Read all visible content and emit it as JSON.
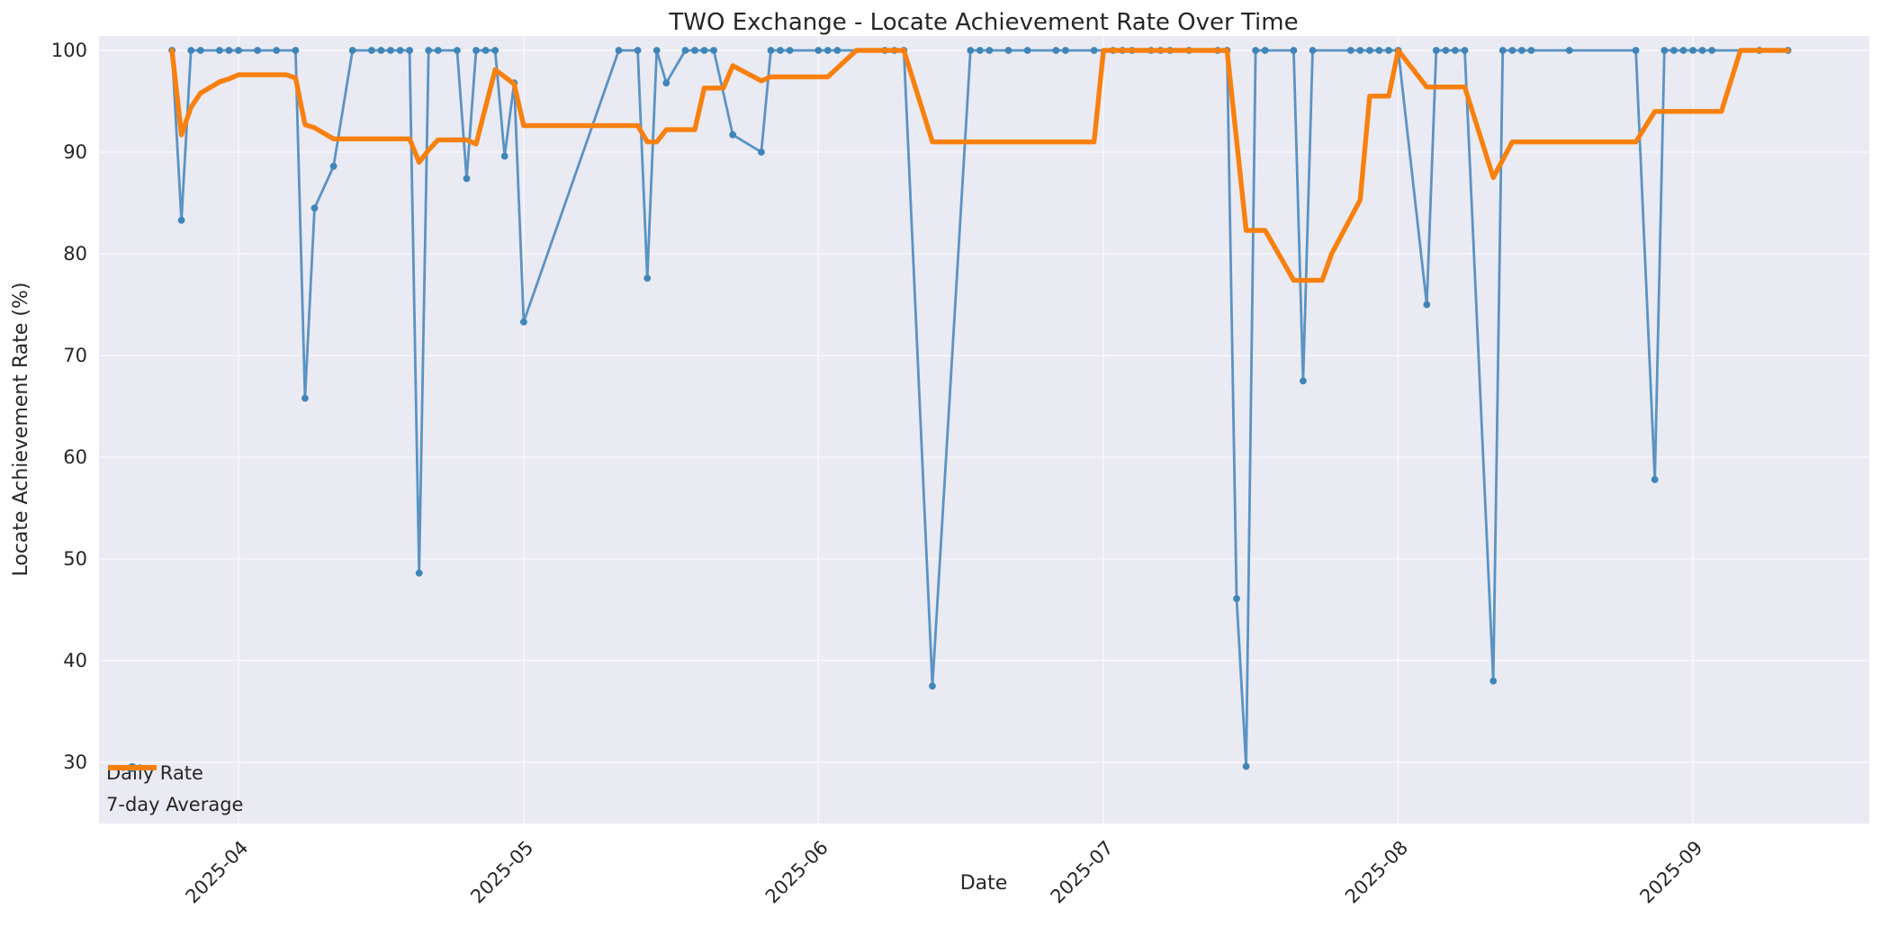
{
  "figure": {
    "title": "TWO Exchange - Locate Achievement Rate Over Time",
    "xlabel": "Date",
    "ylabel": "Locate Achievement Rate (%)"
  },
  "legend": {
    "items": [
      {
        "label": "Daily Rate"
      },
      {
        "label": "7-day Average"
      }
    ]
  },
  "colors": {
    "daily_line": "#5a93c4",
    "daily_marker": "#3f85b8",
    "avg_line": "#f8800f",
    "plot_background": "#eaeaf2",
    "grid_line": "#f7f7fb",
    "text": "#262626"
  },
  "chart_data": {
    "type": "line",
    "title": "TWO Exchange - Locate Achievement Rate Over Time",
    "xlabel": "Date",
    "ylabel": "Locate Achievement Rate (%)",
    "grid": true,
    "legend_position": "lower left",
    "x_axis": {
      "ticks": [
        {
          "label": "2025-04",
          "date": "2025-04-01"
        },
        {
          "label": "2025-05",
          "date": "2025-05-01"
        },
        {
          "label": "2025-06",
          "date": "2025-06-01"
        },
        {
          "label": "2025-07",
          "date": "2025-07-01"
        },
        {
          "label": "2025-08",
          "date": "2025-08-01"
        },
        {
          "label": "2025-09",
          "date": "2025-09-01"
        }
      ]
    },
    "y_axis": {
      "ticks": [
        30,
        40,
        50,
        60,
        70,
        80,
        90,
        100
      ],
      "range": [
        24,
        101.4
      ]
    },
    "series": [
      {
        "name": "Daily Rate",
        "marker": true,
        "points": [
          [
            "2025-03-25",
            100
          ],
          [
            "2025-03-26",
            83.3
          ],
          [
            "2025-03-27",
            100
          ],
          [
            "2025-03-28",
            100
          ],
          [
            "2025-03-30",
            100
          ],
          [
            "2025-03-31",
            100
          ],
          [
            "2025-04-01",
            100
          ],
          [
            "2025-04-03",
            100
          ],
          [
            "2025-04-05",
            100
          ],
          [
            "2025-04-07",
            100
          ],
          [
            "2025-04-08",
            65.8
          ],
          [
            "2025-04-09",
            84.5
          ],
          [
            "2025-04-11",
            88.6
          ],
          [
            "2025-04-13",
            100
          ],
          [
            "2025-04-15",
            100
          ],
          [
            "2025-04-16",
            100
          ],
          [
            "2025-04-17",
            100
          ],
          [
            "2025-04-18",
            100
          ],
          [
            "2025-04-19",
            100
          ],
          [
            "2025-04-20",
            48.6
          ],
          [
            "2025-04-21",
            100
          ],
          [
            "2025-04-22",
            100
          ],
          [
            "2025-04-24",
            100
          ],
          [
            "2025-04-25",
            87.4
          ],
          [
            "2025-04-26",
            100
          ],
          [
            "2025-04-27",
            100
          ],
          [
            "2025-04-28",
            100
          ],
          [
            "2025-04-29",
            89.6
          ],
          [
            "2025-04-30",
            96.8
          ],
          [
            "2025-05-01",
            73.3
          ],
          [
            "2025-05-11",
            100
          ],
          [
            "2025-05-13",
            100
          ],
          [
            "2025-05-14",
            77.6
          ],
          [
            "2025-05-15",
            100
          ],
          [
            "2025-05-16",
            96.8
          ],
          [
            "2025-05-18",
            100
          ],
          [
            "2025-05-19",
            100
          ],
          [
            "2025-05-20",
            100
          ],
          [
            "2025-05-21",
            100
          ],
          [
            "2025-05-23",
            91.7
          ],
          [
            "2025-05-26",
            90
          ],
          [
            "2025-05-27",
            100
          ],
          [
            "2025-05-28",
            100
          ],
          [
            "2025-05-29",
            100
          ],
          [
            "2025-06-01",
            100
          ],
          [
            "2025-06-02",
            100
          ],
          [
            "2025-06-03",
            100
          ],
          [
            "2025-06-08",
            100
          ],
          [
            "2025-06-09",
            100
          ],
          [
            "2025-06-10",
            100
          ],
          [
            "2025-06-13",
            37.5
          ],
          [
            "2025-06-17",
            100
          ],
          [
            "2025-06-18",
            100
          ],
          [
            "2025-06-19",
            100
          ],
          [
            "2025-06-21",
            100
          ],
          [
            "2025-06-23",
            100
          ],
          [
            "2025-06-26",
            100
          ],
          [
            "2025-06-27",
            100
          ],
          [
            "2025-06-30",
            100
          ],
          [
            "2025-07-02",
            100
          ],
          [
            "2025-07-03",
            100
          ],
          [
            "2025-07-04",
            100
          ],
          [
            "2025-07-06",
            100
          ],
          [
            "2025-07-07",
            100
          ],
          [
            "2025-07-08",
            100
          ],
          [
            "2025-07-10",
            100
          ],
          [
            "2025-07-13",
            100
          ],
          [
            "2025-07-14",
            100
          ],
          [
            "2025-07-15",
            46.1
          ],
          [
            "2025-07-16",
            29.6
          ],
          [
            "2025-07-17",
            100
          ],
          [
            "2025-07-18",
            100
          ],
          [
            "2025-07-21",
            100
          ],
          [
            "2025-07-22",
            67.5
          ],
          [
            "2025-07-23",
            100
          ],
          [
            "2025-07-27",
            100
          ],
          [
            "2025-07-28",
            100
          ],
          [
            "2025-07-29",
            100
          ],
          [
            "2025-07-30",
            100
          ],
          [
            "2025-07-31",
            100
          ],
          [
            "2025-08-01",
            100
          ],
          [
            "2025-08-04",
            75
          ],
          [
            "2025-08-05",
            100
          ],
          [
            "2025-08-06",
            100
          ],
          [
            "2025-08-07",
            100
          ],
          [
            "2025-08-08",
            100
          ],
          [
            "2025-08-11",
            38
          ],
          [
            "2025-08-12",
            100
          ],
          [
            "2025-08-13",
            100
          ],
          [
            "2025-08-14",
            100
          ],
          [
            "2025-08-15",
            100
          ],
          [
            "2025-08-19",
            100
          ],
          [
            "2025-08-26",
            100
          ],
          [
            "2025-08-28",
            57.8
          ],
          [
            "2025-08-29",
            100
          ],
          [
            "2025-08-30",
            100
          ],
          [
            "2025-08-31",
            100
          ],
          [
            "2025-09-01",
            100
          ],
          [
            "2025-09-02",
            100
          ],
          [
            "2025-09-03",
            100
          ],
          [
            "2025-09-08",
            100
          ],
          [
            "2025-09-11",
            100
          ]
        ]
      },
      {
        "name": "7-day Average",
        "marker": false,
        "points": [
          [
            "2025-03-25",
            100
          ],
          [
            "2025-03-26",
            91.7
          ],
          [
            "2025-03-27",
            94.4
          ],
          [
            "2025-03-28",
            95.8
          ],
          [
            "2025-03-30",
            96.9
          ],
          [
            "2025-03-31",
            97.2
          ],
          [
            "2025-04-01",
            97.6
          ],
          [
            "2025-04-06",
            97.6
          ],
          [
            "2025-04-07",
            97.3
          ],
          [
            "2025-04-08",
            92.7
          ],
          [
            "2025-04-09",
            92.4
          ],
          [
            "2025-04-11",
            91.3
          ],
          [
            "2025-04-19",
            91.3
          ],
          [
            "2025-04-20",
            89.0
          ],
          [
            "2025-04-21",
            90.2
          ],
          [
            "2025-04-22",
            91.2
          ],
          [
            "2025-04-25",
            91.2
          ],
          [
            "2025-04-26",
            90.8
          ],
          [
            "2025-04-28",
            98.1
          ],
          [
            "2025-04-30",
            96.7
          ],
          [
            "2025-05-01",
            92.6
          ],
          [
            "2025-05-13",
            92.6
          ],
          [
            "2025-05-14",
            91.0
          ],
          [
            "2025-05-15",
            91.0
          ],
          [
            "2025-05-16",
            92.2
          ],
          [
            "2025-05-19",
            92.2
          ],
          [
            "2025-05-20",
            96.3
          ],
          [
            "2025-05-22",
            96.3
          ],
          [
            "2025-05-23",
            98.5
          ],
          [
            "2025-05-26",
            97.0
          ],
          [
            "2025-05-27",
            97.4
          ],
          [
            "2025-06-02",
            97.4
          ],
          [
            "2025-06-05",
            100
          ],
          [
            "2025-06-10",
            100
          ],
          [
            "2025-06-13",
            91.0
          ],
          [
            "2025-06-30",
            91.0
          ],
          [
            "2025-07-01",
            100
          ],
          [
            "2025-07-14",
            100
          ],
          [
            "2025-07-16",
            82.3
          ],
          [
            "2025-07-18",
            82.3
          ],
          [
            "2025-07-21",
            77.4
          ],
          [
            "2025-07-24",
            77.4
          ],
          [
            "2025-07-25",
            80.0
          ],
          [
            "2025-07-28",
            85.3
          ],
          [
            "2025-07-29",
            95.5
          ],
          [
            "2025-07-31",
            95.5
          ],
          [
            "2025-08-01",
            100
          ],
          [
            "2025-08-04",
            96.4
          ],
          [
            "2025-08-08",
            96.4
          ],
          [
            "2025-08-11",
            87.5
          ],
          [
            "2025-08-13",
            91.0
          ],
          [
            "2025-08-26",
            91.0
          ],
          [
            "2025-08-28",
            94.0
          ],
          [
            "2025-09-04",
            94.0
          ],
          [
            "2025-09-06",
            100
          ],
          [
            "2025-09-11",
            100
          ]
        ]
      }
    ]
  }
}
